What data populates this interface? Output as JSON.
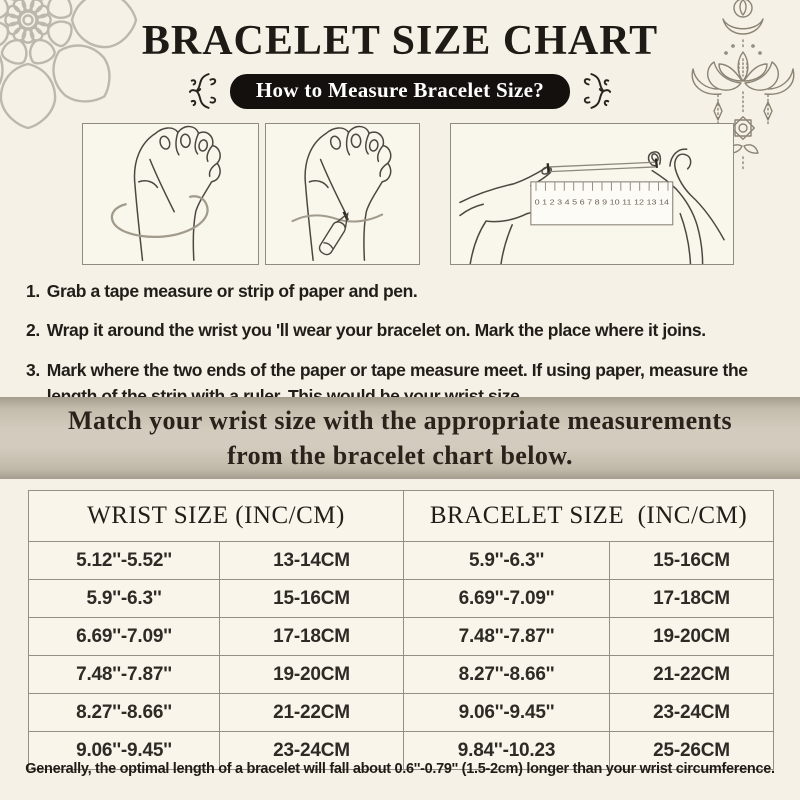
{
  "header": {
    "title": "BRACELET SIZE CHART",
    "badge": "How to Measure Bracelet Size?"
  },
  "steps": [
    {
      "num": "1.",
      "text": "Grab a tape measure or strip of paper and pen."
    },
    {
      "num": "2.",
      "text": "Wrap it around the wrist you 'll wear your bracelet on. Mark the place where it joins."
    },
    {
      "num": "3.",
      "text": "Mark where the two ends of the paper or tape measure meet. If using paper, measure the length of the strip with a ruler. This would be your wrist size."
    }
  ],
  "banner": {
    "line1": "Match your wrist size with the appropriate measurements",
    "line2": "from the bracelet chart below."
  },
  "size_table": {
    "header_left": "WRIST SIZE (INC/CM)",
    "header_right": "BRACELET SIZE  (INC/CM)",
    "rows": [
      [
        "5.12''-5.52''",
        "13-14CM",
        "5.9''-6.3''",
        "15-16CM"
      ],
      [
        "5.9''-6.3''",
        "15-16CM",
        "6.69''-7.09''",
        "17-18CM"
      ],
      [
        "6.69''-7.09''",
        "17-18CM",
        "7.48''-7.87''",
        "19-20CM"
      ],
      [
        "7.48''-7.87''",
        "19-20CM",
        "8.27''-8.66''",
        "21-22CM"
      ],
      [
        "8.27''-8.66''",
        "21-22CM",
        "9.06''-9.45''",
        "23-24CM"
      ],
      [
        "9.06''-9.45''",
        "23-24CM",
        "9.84''-10.23",
        "25-26CM"
      ]
    ]
  },
  "footnote": "Generally, the optimal length of a bracelet will fall about 0.6''-0.79'' (1.5-2cm) longer than your wrist circumference.",
  "illustrations": {
    "ruler_numbers": "0 1 2 3 4 5 6 7 8 9 10 11 12 13 14"
  },
  "colors": {
    "background": "#f5f1e6",
    "badge_bg": "#14100d",
    "badge_text": "#ffffff",
    "banner_center": "#d3ccbe",
    "banner_edge": "#a59d8e",
    "table_line": "#949087",
    "line_art": "#4d4741",
    "ornament": "#8b8374",
    "mandala": "#bcb8ae",
    "ink": "#24201b"
  }
}
